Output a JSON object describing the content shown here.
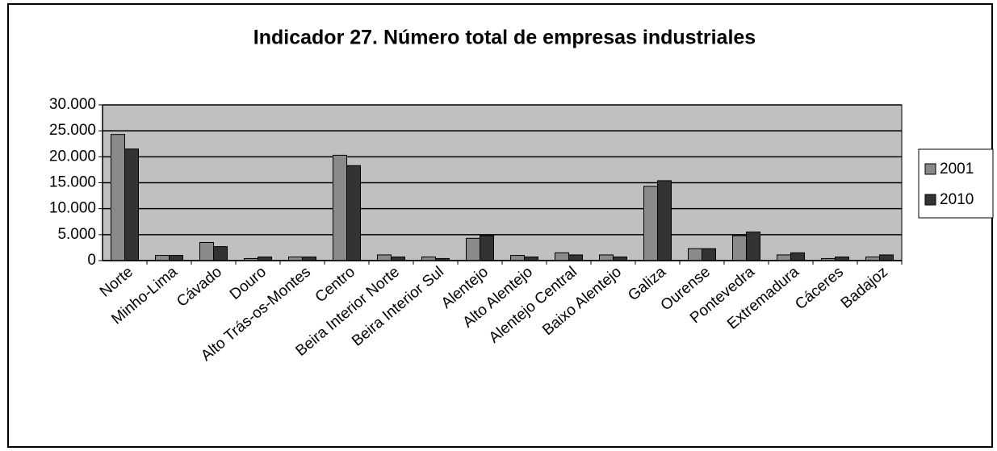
{
  "chart_data": {
    "type": "bar",
    "title": "Indicador 27. Número total de empresas industriales",
    "categories": [
      "Norte",
      "Minho-Lima",
      "Cávado",
      "Douro",
      "Alto Trás-os-Montes",
      "Centro",
      "Beira Interior Norte",
      "Beira Interior Sul",
      "Alentejo",
      "Alto Alentejo",
      "Alentejo Central",
      "Baixo Alentejo",
      "Galiza",
      "Ourense",
      "Pontevedra",
      "Extremadura",
      "Cáceres",
      "Badajoz"
    ],
    "series": [
      {
        "name": "2001",
        "color": "#8a8a8a",
        "values": [
          24300,
          1000,
          3500,
          400,
          700,
          20300,
          1100,
          700,
          4300,
          1000,
          1500,
          1100,
          14300,
          2300,
          4800,
          1100,
          400,
          700
        ]
      },
      {
        "name": "2010",
        "color": "#333333",
        "values": [
          21500,
          1000,
          2700,
          700,
          700,
          18300,
          700,
          400,
          4800,
          700,
          1100,
          700,
          15400,
          2300,
          5500,
          1500,
          700,
          1100
        ]
      }
    ],
    "ylim": [
      0,
      30000
    ],
    "yticks": [
      0,
      {
        "value": 5000,
        "label": "5.000"
      },
      {
        "value": 10000,
        "label": "10.000"
      },
      {
        "value": 15000,
        "label": "15.000"
      },
      {
        "value": 20000,
        "label": "20.000"
      },
      {
        "value": 25000,
        "label": "25.000"
      },
      {
        "value": 30000,
        "label": "30.000"
      }
    ],
    "grid": true,
    "legend": "right"
  }
}
